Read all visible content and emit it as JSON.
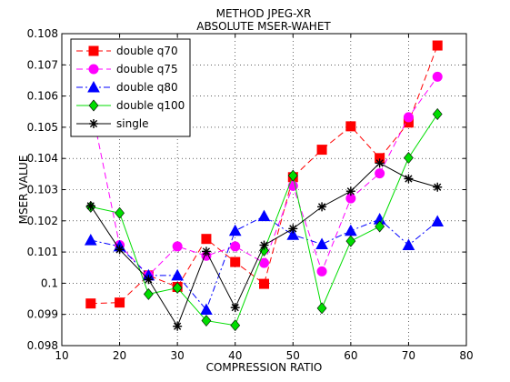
{
  "chart_data": {
    "type": "line",
    "title": "METHOD JPEG-XR",
    "subtitle": "ABSOLUTE MSER-WAHET",
    "xlabel": "COMPRESSION RATIO",
    "ylabel": "MSER VALUE",
    "xlim": [
      10,
      80
    ],
    "ylim": [
      0.098,
      0.108
    ],
    "x_ticks": [
      10,
      20,
      30,
      40,
      50,
      60,
      70,
      80
    ],
    "x_tick_labels": [
      "10",
      "20",
      "30",
      "40",
      "50",
      "60",
      "70",
      "80"
    ],
    "y_ticks": [
      0.098,
      0.099,
      0.1,
      0.101,
      0.102,
      0.103,
      0.104,
      0.105,
      0.106,
      0.107,
      0.108
    ],
    "y_tick_labels": [
      "0.098",
      "0.099",
      "0.1",
      "0.101",
      "0.102",
      "0.103",
      "0.104",
      "0.105",
      "0.106",
      "0.107",
      "0.108"
    ],
    "grid": true,
    "legend_position": "top-left",
    "x": [
      15,
      20,
      25,
      30,
      35,
      40,
      45,
      50,
      55,
      60,
      65,
      70,
      75
    ],
    "series": [
      {
        "name": "double q70",
        "color": "#ff0000",
        "dash": "dashed",
        "marker": "square",
        "values": [
          0.09935,
          0.09938,
          0.10025,
          0.09988,
          0.10142,
          0.10068,
          0.09998,
          0.1034,
          0.10428,
          0.10503,
          0.10401,
          0.10515,
          0.10762
        ]
      },
      {
        "name": "double q75",
        "color": "#ff00ff",
        "dash": "dashed",
        "marker": "circle",
        "values": [
          0.10575,
          0.10122,
          0.10025,
          0.10118,
          0.10088,
          0.10118,
          0.10065,
          0.10312,
          0.10038,
          0.10272,
          0.10352,
          0.10532,
          0.10662
        ]
      },
      {
        "name": "double q80",
        "color": "#0000ff",
        "dash": "dashdot",
        "marker": "triangle",
        "values": [
          0.10138,
          0.10118,
          0.10025,
          0.10025,
          0.09915,
          0.10168,
          0.10215,
          0.10155,
          0.10125,
          0.10168,
          0.10205,
          0.10122,
          0.10198
        ]
      },
      {
        "name": "double q100",
        "color": "#00dd00",
        "dash": "solid",
        "marker": "diamond",
        "values": [
          0.10245,
          0.10225,
          0.09965,
          0.09985,
          0.0988,
          0.09865,
          0.10105,
          0.10345,
          0.0992,
          0.10135,
          0.10182,
          0.10402,
          0.10542
        ]
      },
      {
        "name": "single",
        "color": "#000000",
        "dash": "solid",
        "marker": "star",
        "values": [
          0.10248,
          0.10108,
          0.10012,
          0.09862,
          0.10102,
          0.09922,
          0.10122,
          0.10175,
          0.10245,
          0.10295,
          0.10385,
          0.10335,
          0.10308
        ]
      }
    ]
  }
}
